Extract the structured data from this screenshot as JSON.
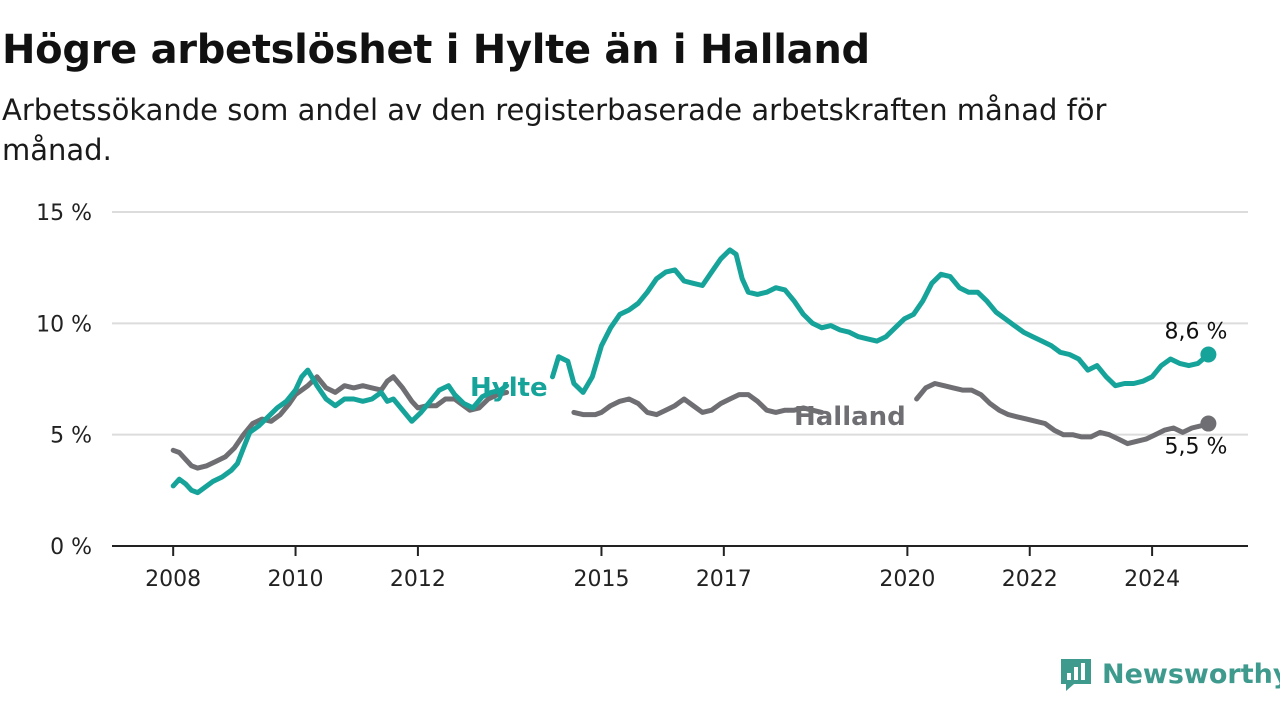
{
  "title": "Högre arbetslöshet i Hylte än i Halland",
  "subtitle": "Arbetssökande som andel av den registerbaserade arbetskraften månad för månad.",
  "brand": {
    "name": "Newsworthy",
    "icon": "bar-chart-speech-icon",
    "color": "#3f9a8e"
  },
  "chart_data": {
    "type": "line",
    "x_unit": "year",
    "xlim": [
      2007.0,
      2025.6
    ],
    "ylim": [
      0,
      15
    ],
    "y_ticks": [
      {
        "value": 0,
        "label": "0 %"
      },
      {
        "value": 5,
        "label": "5 %"
      },
      {
        "value": 10,
        "label": "10 %"
      },
      {
        "value": 15,
        "label": "15 %"
      }
    ],
    "x_ticks": [
      {
        "value": 2008,
        "label": "2008"
      },
      {
        "value": 2010,
        "label": "2010"
      },
      {
        "value": 2012,
        "label": "2012"
      },
      {
        "value": 2015,
        "label": "2015"
      },
      {
        "value": 2017,
        "label": "2017"
      },
      {
        "value": 2020,
        "label": "2020"
      },
      {
        "value": 2022,
        "label": "2022"
      },
      {
        "value": 2024,
        "label": "2024"
      }
    ],
    "grid": "horizontal",
    "series": [
      {
        "name": "Halland",
        "color": "#6f6f73",
        "end_label": "5,5 %",
        "points": [
          [
            2008.0,
            4.3
          ],
          [
            2008.1,
            4.2
          ],
          [
            2008.2,
            3.9
          ],
          [
            2008.3,
            3.6
          ],
          [
            2008.4,
            3.5
          ],
          [
            2008.55,
            3.6
          ],
          [
            2008.7,
            3.8
          ],
          [
            2008.85,
            4.0
          ],
          [
            2009.0,
            4.4
          ],
          [
            2009.15,
            5.0
          ],
          [
            2009.3,
            5.5
          ],
          [
            2009.45,
            5.7
          ],
          [
            2009.6,
            5.6
          ],
          [
            2009.75,
            5.9
          ],
          [
            2009.9,
            6.4
          ],
          [
            2010.0,
            6.8
          ],
          [
            2010.2,
            7.2
          ],
          [
            2010.35,
            7.6
          ],
          [
            2010.5,
            7.1
          ],
          [
            2010.65,
            6.9
          ],
          [
            2010.8,
            7.2
          ],
          [
            2010.95,
            7.1
          ],
          [
            2011.1,
            7.2
          ],
          [
            2011.25,
            7.1
          ],
          [
            2011.4,
            7.0
          ],
          [
            2011.5,
            7.4
          ],
          [
            2011.6,
            7.6
          ],
          [
            2011.75,
            7.1
          ],
          [
            2011.9,
            6.5
          ],
          [
            2012.0,
            6.2
          ],
          [
            2012.15,
            6.3
          ],
          [
            2012.3,
            6.3
          ],
          [
            2012.45,
            6.6
          ],
          [
            2012.6,
            6.6
          ],
          [
            2012.7,
            6.4
          ],
          [
            2012.85,
            6.1
          ],
          [
            2013.0,
            6.2
          ],
          [
            2013.15,
            6.6
          ],
          [
            2013.3,
            6.8
          ],
          [
            2013.45,
            6.9
          ],
          [
            2014.55,
            6.0
          ],
          [
            2014.7,
            5.9
          ],
          [
            2014.9,
            5.9
          ],
          [
            2015.0,
            6.0
          ],
          [
            2015.15,
            6.3
          ],
          [
            2015.3,
            6.5
          ],
          [
            2015.45,
            6.6
          ],
          [
            2015.6,
            6.4
          ],
          [
            2015.75,
            6.0
          ],
          [
            2015.9,
            5.9
          ],
          [
            2016.05,
            6.1
          ],
          [
            2016.2,
            6.3
          ],
          [
            2016.35,
            6.6
          ],
          [
            2016.5,
            6.3
          ],
          [
            2016.65,
            6.0
          ],
          [
            2016.8,
            6.1
          ],
          [
            2016.95,
            6.4
          ],
          [
            2017.1,
            6.6
          ],
          [
            2017.25,
            6.8
          ],
          [
            2017.4,
            6.8
          ],
          [
            2017.55,
            6.5
          ],
          [
            2017.7,
            6.1
          ],
          [
            2017.85,
            6.0
          ],
          [
            2018.0,
            6.1
          ],
          [
            2018.15,
            6.1
          ],
          [
            2018.3,
            6.2
          ],
          [
            2018.45,
            6.1
          ],
          [
            2018.6,
            6.0
          ],
          [
            2020.15,
            6.6
          ],
          [
            2020.3,
            7.1
          ],
          [
            2020.45,
            7.3
          ],
          [
            2020.6,
            7.2
          ],
          [
            2020.75,
            7.1
          ],
          [
            2020.9,
            7.0
          ],
          [
            2021.05,
            7.0
          ],
          [
            2021.2,
            6.8
          ],
          [
            2021.35,
            6.4
          ],
          [
            2021.5,
            6.1
          ],
          [
            2021.65,
            5.9
          ],
          [
            2021.8,
            5.8
          ],
          [
            2021.95,
            5.7
          ],
          [
            2022.1,
            5.6
          ],
          [
            2022.25,
            5.5
          ],
          [
            2022.4,
            5.2
          ],
          [
            2022.55,
            5.0
          ],
          [
            2022.7,
            5.0
          ],
          [
            2022.85,
            4.9
          ],
          [
            2023.0,
            4.9
          ],
          [
            2023.15,
            5.1
          ],
          [
            2023.3,
            5.0
          ],
          [
            2023.45,
            4.8
          ],
          [
            2023.6,
            4.6
          ],
          [
            2023.75,
            4.7
          ],
          [
            2023.9,
            4.8
          ],
          [
            2024.05,
            5.0
          ],
          [
            2024.2,
            5.2
          ],
          [
            2024.35,
            5.3
          ],
          [
            2024.5,
            5.1
          ],
          [
            2024.65,
            5.3
          ],
          [
            2024.8,
            5.4
          ],
          [
            2024.92,
            5.5
          ]
        ]
      },
      {
        "name": "Hylte",
        "color": "#16a39a",
        "end_label": "8,6 %",
        "points": [
          [
            2008.0,
            2.7
          ],
          [
            2008.1,
            3.0
          ],
          [
            2008.2,
            2.8
          ],
          [
            2008.3,
            2.5
          ],
          [
            2008.4,
            2.4
          ],
          [
            2008.5,
            2.6
          ],
          [
            2008.65,
            2.9
          ],
          [
            2008.8,
            3.1
          ],
          [
            2008.95,
            3.4
          ],
          [
            2009.05,
            3.7
          ],
          [
            2009.15,
            4.4
          ],
          [
            2009.25,
            5.1
          ],
          [
            2009.4,
            5.4
          ],
          [
            2009.55,
            5.8
          ],
          [
            2009.7,
            6.2
          ],
          [
            2009.85,
            6.5
          ],
          [
            2010.0,
            7.0
          ],
          [
            2010.1,
            7.6
          ],
          [
            2010.2,
            7.9
          ],
          [
            2010.35,
            7.2
          ],
          [
            2010.5,
            6.6
          ],
          [
            2010.65,
            6.3
          ],
          [
            2010.8,
            6.6
          ],
          [
            2010.95,
            6.6
          ],
          [
            2011.1,
            6.5
          ],
          [
            2011.25,
            6.6
          ],
          [
            2011.4,
            6.9
          ],
          [
            2011.5,
            6.5
          ],
          [
            2011.6,
            6.6
          ],
          [
            2011.75,
            6.1
          ],
          [
            2011.9,
            5.6
          ],
          [
            2012.05,
            6.0
          ],
          [
            2012.2,
            6.5
          ],
          [
            2012.35,
            7.0
          ],
          [
            2012.5,
            7.2
          ],
          [
            2012.6,
            6.8
          ],
          [
            2012.75,
            6.4
          ],
          [
            2012.9,
            6.2
          ],
          [
            2013.05,
            6.7
          ],
          [
            2013.2,
            6.9
          ],
          [
            2013.35,
            7.0
          ],
          [
            2013.45,
            7.2
          ],
          [
            2014.2,
            7.6
          ],
          [
            2014.3,
            8.5
          ],
          [
            2014.45,
            8.3
          ],
          [
            2014.55,
            7.3
          ],
          [
            2014.7,
            6.9
          ],
          [
            2014.85,
            7.6
          ],
          [
            2015.0,
            9.0
          ],
          [
            2015.15,
            9.8
          ],
          [
            2015.3,
            10.4
          ],
          [
            2015.45,
            10.6
          ],
          [
            2015.6,
            10.9
          ],
          [
            2015.75,
            11.4
          ],
          [
            2015.9,
            12.0
          ],
          [
            2016.05,
            12.3
          ],
          [
            2016.2,
            12.4
          ],
          [
            2016.35,
            11.9
          ],
          [
            2016.5,
            11.8
          ],
          [
            2016.65,
            11.7
          ],
          [
            2016.8,
            12.3
          ],
          [
            2016.95,
            12.9
          ],
          [
            2017.1,
            13.3
          ],
          [
            2017.2,
            13.1
          ],
          [
            2017.3,
            12.0
          ],
          [
            2017.4,
            11.4
          ],
          [
            2017.55,
            11.3
          ],
          [
            2017.7,
            11.4
          ],
          [
            2017.85,
            11.6
          ],
          [
            2018.0,
            11.5
          ],
          [
            2018.15,
            11.0
          ],
          [
            2018.3,
            10.4
          ],
          [
            2018.45,
            10.0
          ],
          [
            2018.6,
            9.8
          ],
          [
            2018.75,
            9.9
          ],
          [
            2018.9,
            9.7
          ],
          [
            2019.05,
            9.6
          ],
          [
            2019.2,
            9.4
          ],
          [
            2019.35,
            9.3
          ],
          [
            2019.5,
            9.2
          ],
          [
            2019.65,
            9.4
          ],
          [
            2019.8,
            9.8
          ],
          [
            2019.95,
            10.2
          ],
          [
            2020.1,
            10.4
          ],
          [
            2020.25,
            11.0
          ],
          [
            2020.4,
            11.8
          ],
          [
            2020.55,
            12.2
          ],
          [
            2020.7,
            12.1
          ],
          [
            2020.85,
            11.6
          ],
          [
            2021.0,
            11.4
          ],
          [
            2021.15,
            11.4
          ],
          [
            2021.3,
            11.0
          ],
          [
            2021.45,
            10.5
          ],
          [
            2021.6,
            10.2
          ],
          [
            2021.75,
            9.9
          ],
          [
            2021.9,
            9.6
          ],
          [
            2022.05,
            9.4
          ],
          [
            2022.2,
            9.2
          ],
          [
            2022.35,
            9.0
          ],
          [
            2022.5,
            8.7
          ],
          [
            2022.65,
            8.6
          ],
          [
            2022.8,
            8.4
          ],
          [
            2022.95,
            7.9
          ],
          [
            2023.1,
            8.1
          ],
          [
            2023.25,
            7.6
          ],
          [
            2023.4,
            7.2
          ],
          [
            2023.55,
            7.3
          ],
          [
            2023.7,
            7.3
          ],
          [
            2023.85,
            7.4
          ],
          [
            2024.0,
            7.6
          ],
          [
            2024.15,
            8.1
          ],
          [
            2024.3,
            8.4
          ],
          [
            2024.45,
            8.2
          ],
          [
            2024.6,
            8.1
          ],
          [
            2024.75,
            8.2
          ],
          [
            2024.92,
            8.6
          ]
        ]
      }
    ]
  }
}
